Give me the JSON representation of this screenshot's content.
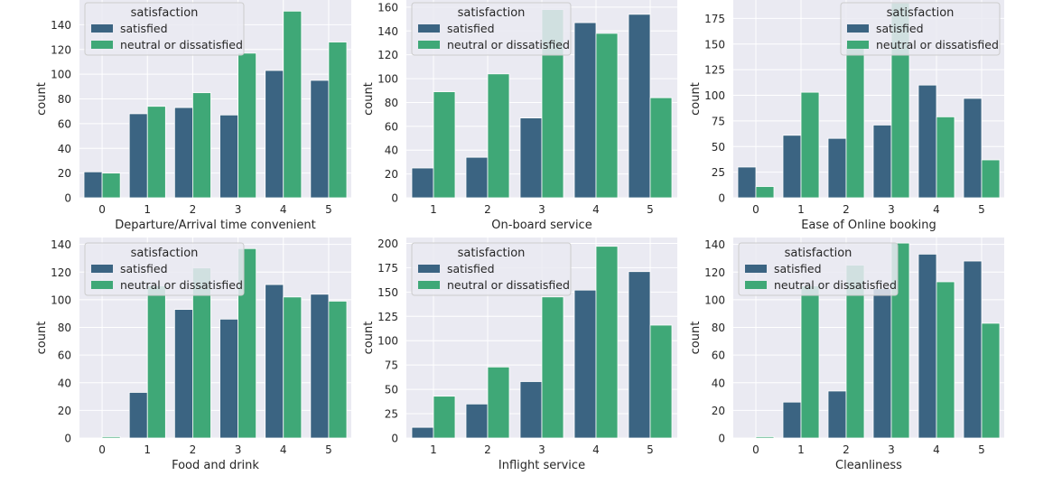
{
  "chart_data": [
    {
      "type": "bar",
      "xlabel": "Departure/Arrival time convenient",
      "ylabel": "count",
      "categories": [
        "0",
        "1",
        "2",
        "3",
        "4",
        "5"
      ],
      "ylim": [
        0,
        160
      ],
      "yticks": [
        0,
        20,
        40,
        60,
        80,
        100,
        120,
        140
      ],
      "legend": {
        "title": "satisfaction",
        "placement": "upper-left"
      },
      "series": [
        {
          "name": "satisfied",
          "color": "#3b6482",
          "values": [
            21,
            68,
            73,
            67,
            103,
            95
          ]
        },
        {
          "name": "neutral or dissatisfied",
          "color": "#3fa877",
          "values": [
            20,
            74,
            85,
            117,
            151,
            126
          ]
        }
      ]
    },
    {
      "type": "bar",
      "xlabel": "On-board service",
      "ylabel": "count",
      "categories": [
        "1",
        "2",
        "3",
        "4",
        "5"
      ],
      "ylim": [
        0,
        166
      ],
      "yticks": [
        0,
        20,
        40,
        60,
        80,
        100,
        120,
        140,
        160
      ],
      "legend": {
        "title": "satisfaction",
        "placement": "upper-left"
      },
      "series": [
        {
          "name": "satisfied",
          "color": "#3b6482",
          "values": [
            25,
            34,
            67,
            147,
            154
          ]
        },
        {
          "name": "neutral or dissatisfied",
          "color": "#3fa877",
          "values": [
            89,
            104,
            158,
            138,
            84
          ]
        }
      ]
    },
    {
      "type": "bar",
      "xlabel": "Ease of Online booking",
      "ylabel": "count",
      "categories": [
        "0",
        "1",
        "2",
        "3",
        "4",
        "5"
      ],
      "ylim": [
        0,
        193
      ],
      "yticks": [
        0,
        25,
        50,
        75,
        100,
        125,
        150,
        175
      ],
      "legend": {
        "title": "satisfaction",
        "placement": "upper-right"
      },
      "series": [
        {
          "name": "satisfied",
          "color": "#3b6482",
          "values": [
            30,
            61,
            58,
            71,
            110,
            97
          ]
        },
        {
          "name": "neutral or dissatisfied",
          "color": "#3fa877",
          "values": [
            11,
            103,
            148,
            190,
            79,
            37
          ]
        }
      ]
    },
    {
      "type": "bar",
      "xlabel": "Food and drink",
      "ylabel": "count",
      "categories": [
        "0",
        "1",
        "2",
        "3",
        "4",
        "5"
      ],
      "ylim": [
        0,
        145
      ],
      "yticks": [
        0,
        20,
        40,
        60,
        80,
        100,
        120,
        140
      ],
      "legend": {
        "title": "satisfaction",
        "placement": "upper-left"
      },
      "series": [
        {
          "name": "satisfied",
          "color": "#3b6482",
          "values": [
            0,
            33,
            93,
            86,
            111,
            104
          ]
        },
        {
          "name": "neutral or dissatisfied",
          "color": "#3fa877",
          "values": [
            1,
            110,
            123,
            137,
            102,
            99
          ]
        }
      ]
    },
    {
      "type": "bar",
      "xlabel": "Inflight service",
      "ylabel": "count",
      "categories": [
        "1",
        "2",
        "3",
        "4",
        "5"
      ],
      "ylim": [
        0,
        206
      ],
      "yticks": [
        0,
        25,
        50,
        75,
        100,
        125,
        150,
        175,
        200
      ],
      "legend": {
        "title": "satisfaction",
        "placement": "upper-left"
      },
      "series": [
        {
          "name": "satisfied",
          "color": "#3b6482",
          "values": [
            11,
            35,
            58,
            152,
            171
          ]
        },
        {
          "name": "neutral or dissatisfied",
          "color": "#3fa877",
          "values": [
            43,
            73,
            145,
            197,
            116
          ]
        }
      ]
    },
    {
      "type": "bar",
      "xlabel": "Cleanliness",
      "ylabel": "count",
      "categories": [
        "0",
        "1",
        "2",
        "3",
        "4",
        "5"
      ],
      "ylim": [
        0,
        145
      ],
      "yticks": [
        0,
        20,
        40,
        60,
        80,
        100,
        120,
        140
      ],
      "legend": {
        "title": "satisfaction",
        "placement": "upper-left"
      },
      "series": [
        {
          "name": "satisfied",
          "color": "#3b6482",
          "values": [
            0,
            26,
            34,
            108,
            133,
            128
          ]
        },
        {
          "name": "neutral or dissatisfied",
          "color": "#3fa877",
          "values": [
            1,
            110,
            125,
            141,
            113,
            83
          ]
        }
      ]
    }
  ]
}
